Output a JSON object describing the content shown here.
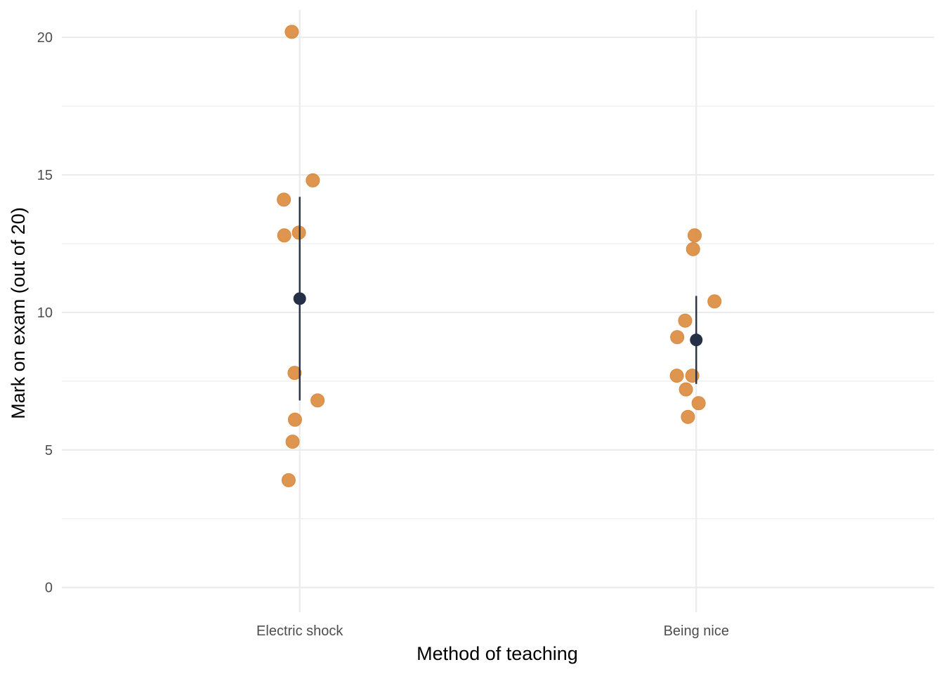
{
  "chart_data": {
    "type": "scatter",
    "title": "",
    "xlabel": "Method of teaching",
    "ylabel": "Mark on exam (out of 20)",
    "categories": [
      "Electric shock",
      "Being nice"
    ],
    "ylim": [
      -0.9,
      21
    ],
    "y_ticks": [
      0,
      5,
      10,
      15,
      20
    ],
    "y_minor_ticks": [
      2.5,
      7.5,
      12.5,
      17.5
    ],
    "y_tick_labels": [
      "0",
      "5",
      "10",
      "15",
      "20"
    ],
    "grid": true,
    "legend": "none",
    "colors": {
      "points": "#d98a3d",
      "summary": "#253047",
      "grid": "#ebebeb",
      "background": "#ffffff"
    },
    "series": [
      {
        "category": "Electric shock",
        "points": [
          {
            "jitter": -0.02,
            "y": 20.2
          },
          {
            "jitter": 0.033,
            "y": 14.8
          },
          {
            "jitter": -0.04,
            "y": 14.1
          },
          {
            "jitter": -0.039,
            "y": 12.8
          },
          {
            "jitter": -0.002,
            "y": 12.9
          },
          {
            "jitter": -0.013,
            "y": 7.8
          },
          {
            "jitter": 0.045,
            "y": 6.8
          },
          {
            "jitter": -0.012,
            "y": 6.1
          },
          {
            "jitter": -0.018,
            "y": 5.3
          },
          {
            "jitter": -0.028,
            "y": 3.9
          }
        ],
        "mean": 10.5,
        "interval": [
          6.8,
          14.2
        ]
      },
      {
        "category": "Being nice",
        "points": [
          {
            "jitter": -0.004,
            "y": 12.8
          },
          {
            "jitter": -0.008,
            "y": 12.3
          },
          {
            "jitter": 0.046,
            "y": 10.4
          },
          {
            "jitter": -0.028,
            "y": 9.7
          },
          {
            "jitter": -0.048,
            "y": 9.1
          },
          {
            "jitter": -0.049,
            "y": 7.7
          },
          {
            "jitter": -0.01,
            "y": 7.7
          },
          {
            "jitter": -0.026,
            "y": 7.2
          },
          {
            "jitter": 0.006,
            "y": 6.7
          },
          {
            "jitter": -0.021,
            "y": 6.2
          }
        ],
        "mean": 9.0,
        "interval": [
          7.4,
          10.6
        ]
      }
    ]
  }
}
